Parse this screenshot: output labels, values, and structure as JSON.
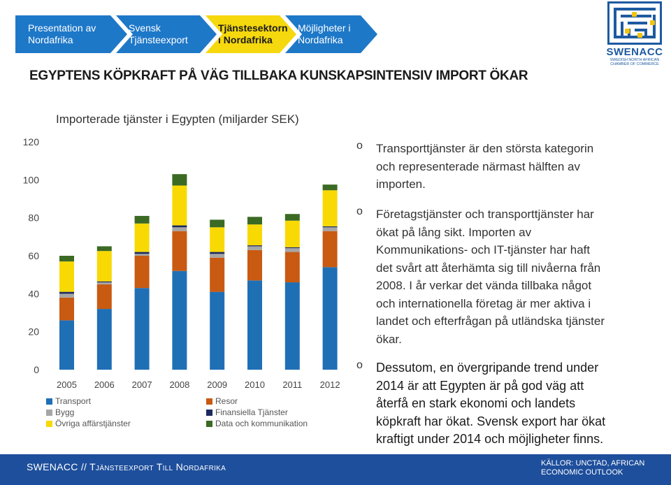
{
  "nav": {
    "items": [
      {
        "label": "Presentation av Nordafrika"
      },
      {
        "label": "Svensk Tjänsteexport"
      },
      {
        "label": "Tjänstesektorn i Nordafrika"
      },
      {
        "label": "Möjligheter i Nordafrika"
      }
    ],
    "active_index": 2
  },
  "logo": {
    "name": "SWENACC",
    "sub1": "Swedish North African",
    "sub2": "Chamber of Commerce"
  },
  "headline": "EGYPTENS KÖPKRAFT PÅ VÄG TILLBAKA KUNSKAPSINTENSIV IMPORT ÖKAR",
  "chart_data": {
    "type": "bar",
    "stacked": true,
    "title": "Importerade tjänster i Egypten (miljarder SEK)",
    "categories": [
      "2005",
      "2006",
      "2007",
      "2008",
      "2009",
      "2010",
      "2011",
      "2012"
    ],
    "ylim": [
      0,
      120
    ],
    "yticks": [
      "0",
      "20",
      "40",
      "60",
      "80",
      "100",
      "120"
    ],
    "grid": false,
    "series": [
      {
        "name": "Transport",
        "color": "#1f6fb5",
        "values": [
          26,
          32,
          43,
          52,
          41,
          47,
          46,
          54
        ]
      },
      {
        "name": "Resor",
        "color": "#c85a12",
        "values": [
          12,
          13,
          17,
          21,
          18,
          16,
          16,
          19
        ]
      },
      {
        "name": "Bygg",
        "color": "#a6a6a6",
        "values": [
          2,
          1,
          1,
          2,
          2,
          2,
          2,
          2
        ]
      },
      {
        "name": "Finansiella Tjänster",
        "color": "#1c2a5e",
        "values": [
          1,
          0.5,
          1,
          1,
          1,
          0.5,
          0.5,
          0.5
        ]
      },
      {
        "name": "Övriga affärstjänster",
        "color": "#f9d904",
        "values": [
          16,
          16,
          15,
          21,
          13,
          11,
          14,
          19
        ]
      },
      {
        "name": "Data och kommunikation",
        "color": "#3b6a24",
        "values": [
          3,
          2.5,
          4,
          6,
          4,
          4,
          3.5,
          3
        ]
      }
    ]
  },
  "bullets": [
    {
      "marker": "o",
      "text": "Transporttjänster är den största kategorin och representerade närmast hälften av importen."
    },
    {
      "marker": "o",
      "text": "Företagstjänster och transporttjänster har ökat på lång sikt. Importen av Kommunikations- och IT-tjänster har haft det svårt att återhämta sig till nivåerna från 2008. I år verkar det vända tillbaka något och internationella företag är mer aktiva i landet och efterfrågan på utländska tjänster ökar."
    },
    {
      "marker": "o",
      "text": "Dessutom, en övergripande trend under 2014 är att Egypten är på god väg att återfå en stark ekonomi och landets köpkraft har ökat. Svensk export har ökat kraftigt under 2014 och möjligheter finns."
    }
  ],
  "footer": {
    "left": "SWENACC // Tjänsteexport Till Nordafrika",
    "right_line1": "Källor: UNCTAD, African",
    "right_line2": "Economic Outlook"
  },
  "colors": {
    "nav_blue": "#1e78c8",
    "nav_active": "#f5d80e",
    "footer": "#1e4f9c",
    "logo": "#1e5aa0"
  }
}
